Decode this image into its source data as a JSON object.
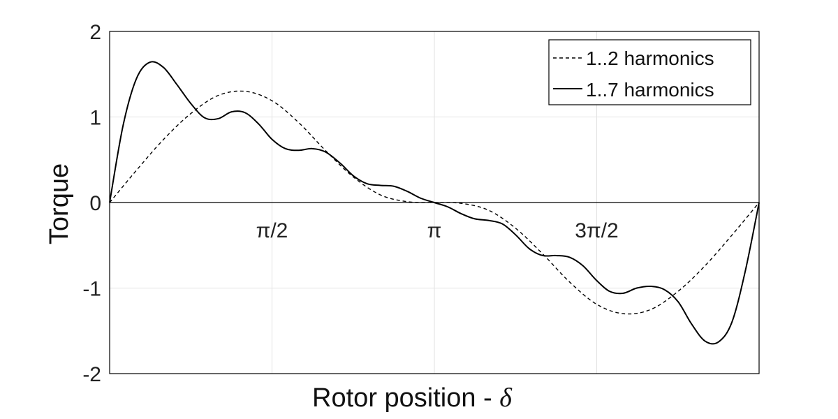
{
  "chart_data": {
    "type": "line",
    "title": "",
    "xlabel": "Rotor position - ",
    "xlabel_symbol": "δ",
    "ylabel": "Torque",
    "xlim": [
      0,
      6.2832
    ],
    "ylim": [
      -2,
      2
    ],
    "grid": true,
    "legend_position": "top-right",
    "x_ticks": [
      {
        "value": 1.5708,
        "label": "π/2"
      },
      {
        "value": 3.1416,
        "label": "π"
      },
      {
        "value": 4.7124,
        "label": "3π/2"
      }
    ],
    "y_ticks": [
      {
        "value": 2,
        "label": "2"
      },
      {
        "value": 1,
        "label": "1"
      },
      {
        "value": 0,
        "label": "0"
      },
      {
        "value": -1,
        "label": "-1"
      },
      {
        "value": -2,
        "label": "-2"
      }
    ],
    "series": [
      {
        "name": "1..2 harmonics",
        "style": "dashed",
        "color": "#000000",
        "x": [
          0,
          0.2618,
          0.5236,
          0.7854,
          1.0472,
          1.309,
          1.5708,
          1.8326,
          2.0944,
          2.3562,
          2.618,
          2.8798,
          3.1416,
          3.4034,
          3.6652,
          3.927,
          4.1888,
          4.4506,
          4.7124,
          4.9742,
          5.236,
          5.4978,
          5.7596,
          6.0214,
          6.2832
        ],
        "y": [
          0,
          0.38,
          0.74,
          1.04,
          1.25,
          1.3,
          1.19,
          0.93,
          0.6,
          0.3,
          0.09,
          0.01,
          0,
          -0.01,
          -0.09,
          -0.3,
          -0.6,
          -0.93,
          -1.19,
          -1.3,
          -1.25,
          -1.04,
          -0.74,
          -0.38,
          0
        ]
      },
      {
        "name": "1..7 harmonics",
        "style": "solid",
        "color": "#000000",
        "x": [
          0,
          0.13,
          0.26,
          0.39,
          0.52,
          0.65,
          0.79,
          0.92,
          1.05,
          1.18,
          1.31,
          1.44,
          1.57,
          1.7,
          1.83,
          1.96,
          2.09,
          2.23,
          2.36,
          2.49,
          2.62,
          2.75,
          2.88,
          3.01,
          3.14,
          3.27,
          3.4,
          3.53,
          3.67,
          3.8,
          3.93,
          4.06,
          4.19,
          4.32,
          4.45,
          4.58,
          4.71,
          4.84,
          4.97,
          5.1,
          5.24,
          5.37,
          5.5,
          5.63,
          5.76,
          5.89,
          6.02,
          6.15,
          6.2832
        ],
        "y": [
          0,
          0.9,
          1.45,
          1.64,
          1.58,
          1.38,
          1.15,
          0.99,
          0.98,
          1.06,
          1.05,
          0.92,
          0.74,
          0.63,
          0.61,
          0.63,
          0.59,
          0.46,
          0.31,
          0.22,
          0.2,
          0.19,
          0.13,
          0.05,
          0,
          -0.05,
          -0.13,
          -0.19,
          -0.21,
          -0.25,
          -0.38,
          -0.54,
          -0.62,
          -0.62,
          -0.64,
          -0.74,
          -0.91,
          -1.04,
          -1.06,
          -1.0,
          -0.98,
          -1.02,
          -1.16,
          -1.42,
          -1.62,
          -1.63,
          -1.4,
          -0.8,
          0
        ]
      }
    ]
  }
}
